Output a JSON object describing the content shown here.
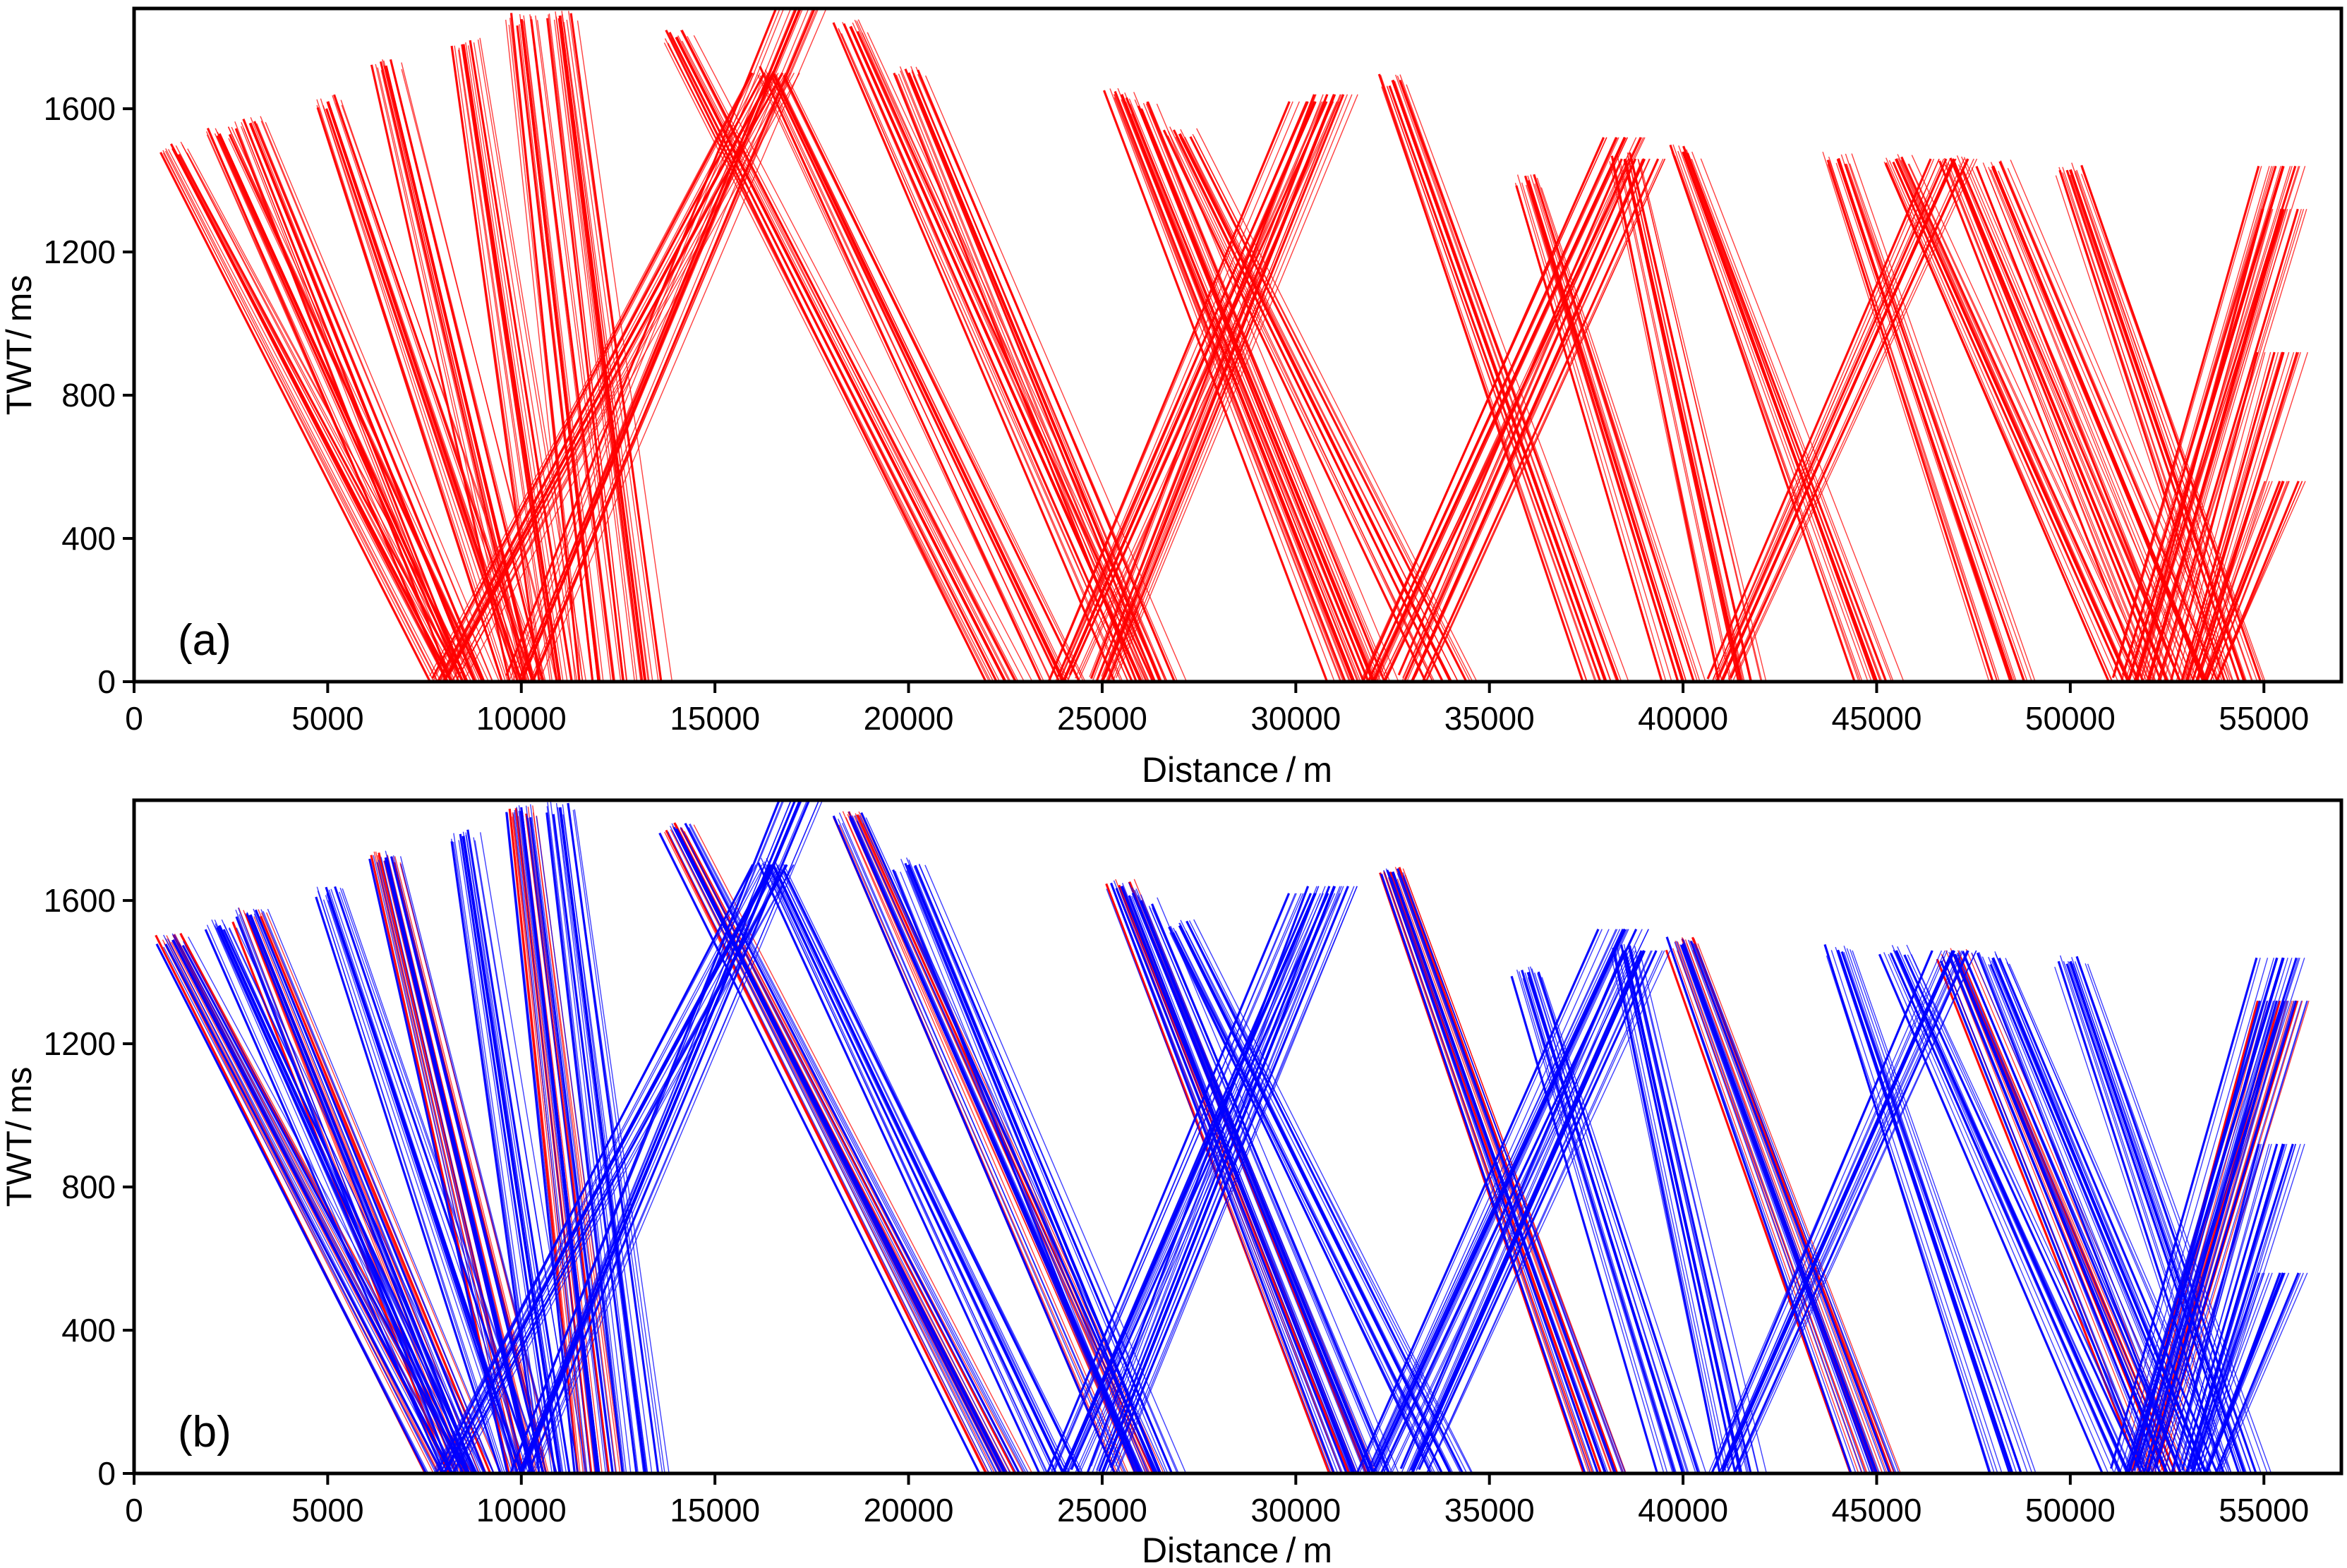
{
  "colors": {
    "observed": "#ff0000",
    "predicted": "#0000ff",
    "axis": "#000000"
  },
  "chart_data": [
    {
      "type": "line",
      "panel_label": "(a)",
      "xlabel": "Distance / m",
      "ylabel": "TWT/ ms",
      "xlim": [
        0,
        57000
      ],
      "ylim": [
        0,
        1880
      ],
      "xticks": [
        "0",
        "5000",
        "10000",
        "15000",
        "20000",
        "25000",
        "30000",
        "35000",
        "40000",
        "45000",
        "50000",
        "55000"
      ],
      "yticks": [
        "0",
        "400",
        "800",
        "1200",
        "1600"
      ],
      "series": [
        {
          "color": "#ff0000",
          "fans": [
            {
              "x": [
                1000,
                8200
              ],
              "y": [
                1490,
                0
              ]
            },
            {
              "x": [
                2200,
                8600
              ],
              "y": [
                1530,
                0
              ]
            },
            {
              "x": [
                3000,
                8800
              ],
              "y": [
                1560,
                0
              ]
            },
            {
              "x": [
                5000,
                10000
              ],
              "y": [
                1620,
                0
              ]
            },
            {
              "x": [
                6500,
                10300
              ],
              "y": [
                1720,
                0
              ]
            },
            {
              "x": [
                8500,
                11000
              ],
              "y": [
                1780,
                0
              ]
            },
            {
              "x": [
                10000,
                12000
              ],
              "y": [
                1850,
                0
              ]
            },
            {
              "x": [
                11000,
                13200
              ],
              "y": [
                1860,
                0
              ]
            },
            {
              "x": [
                8000,
                16500
              ],
              "y": [
                0,
                1700
              ]
            },
            {
              "x": [
                10000,
                17200
              ],
              "y": [
                0,
                1880
              ]
            },
            {
              "x": [
                14000,
                22500
              ],
              "y": [
                1800,
                0
              ]
            },
            {
              "x": [
                16500,
                24000
              ],
              "y": [
                1700,
                0
              ]
            },
            {
              "x": [
                18500,
                26000
              ],
              "y": [
                1830,
                0
              ]
            },
            {
              "x": [
                20000,
                26500
              ],
              "y": [
                1700,
                0
              ]
            },
            {
              "x": [
                24000,
                30500
              ],
              "y": [
                0,
                1620
              ]
            },
            {
              "x": [
                25000,
                31000
              ],
              "y": [
                0,
                1640
              ]
            },
            {
              "x": [
                25500,
                31500
              ],
              "y": [
                1640,
                0
              ]
            },
            {
              "x": [
                26000,
                32000
              ],
              "y": [
                1600,
                0
              ]
            },
            {
              "x": [
                27000,
                34000
              ],
              "y": [
                1530,
                0
              ]
            },
            {
              "x": [
                32500,
                38000
              ],
              "y": [
                1680,
                0
              ]
            },
            {
              "x": [
                32000,
                38500
              ],
              "y": [
                0,
                1520
              ]
            },
            {
              "x": [
                33000,
                39000
              ],
              "y": [
                0,
                1460
              ]
            },
            {
              "x": [
                36000,
                40000
              ],
              "y": [
                1400,
                0
              ]
            },
            {
              "x": [
                38500,
                41500
              ],
              "y": [
                1460,
                0
              ]
            },
            {
              "x": [
                40000,
                45000
              ],
              "y": [
                1480,
                0
              ]
            },
            {
              "x": [
                41000,
                47000
              ],
              "y": [
                0,
                1460
              ]
            },
            {
              "x": [
                44000,
                48500
              ],
              "y": [
                1460,
                0
              ]
            },
            {
              "x": [
                45500,
                51500
              ],
              "y": [
                1460,
                0
              ]
            },
            {
              "x": [
                47000,
                52500
              ],
              "y": [
                1450,
                0
              ]
            },
            {
              "x": [
                48000,
                53500
              ],
              "y": [
                1440,
                0
              ]
            },
            {
              "x": [
                50000,
                54500
              ],
              "y": [
                1430,
                0
              ]
            },
            {
              "x": [
                51500,
                55500
              ],
              "y": [
                0,
                1440
              ]
            },
            {
              "x": [
                52000,
                55500
              ],
              "y": [
                0,
                1320
              ]
            },
            {
              "x": [
                53000,
                55500
              ],
              "y": [
                0,
                920
              ]
            },
            {
              "x": [
                53500,
                55500
              ],
              "y": [
                0,
                560
              ]
            }
          ]
        }
      ]
    },
    {
      "type": "line",
      "panel_label": "(b)",
      "xlabel": "Distance / m",
      "ylabel": "TWT/ ms",
      "xlim": [
        0,
        57000
      ],
      "ylim": [
        0,
        1880
      ],
      "xticks": [
        "0",
        "5000",
        "10000",
        "15000",
        "20000",
        "25000",
        "30000",
        "35000",
        "40000",
        "45000",
        "50000",
        "55000"
      ],
      "yticks": [
        "0",
        "400",
        "800",
        "1200",
        "1600"
      ],
      "series": [
        {
          "color": "#ff0000",
          "fans": [
            {
              "x": [
                1000,
                8200
              ],
              "y": [
                1490,
                0
              ]
            },
            {
              "x": [
                3000,
                8800
              ],
              "y": [
                1560,
                0
              ]
            },
            {
              "x": [
                6500,
                10300
              ],
              "y": [
                1720,
                0
              ]
            },
            {
              "x": [
                10000,
                12000
              ],
              "y": [
                1850,
                0
              ]
            },
            {
              "x": [
                14000,
                22500
              ],
              "y": [
                1800,
                0
              ]
            },
            {
              "x": [
                18500,
                26000
              ],
              "y": [
                1830,
                0
              ]
            },
            {
              "x": [
                25500,
                31500
              ],
              "y": [
                1640,
                0
              ]
            },
            {
              "x": [
                32500,
                38000
              ],
              "y": [
                1680,
                0
              ]
            },
            {
              "x": [
                40000,
                45000
              ],
              "y": [
                1480,
                0
              ]
            },
            {
              "x": [
                47000,
                52500
              ],
              "y": [
                1450,
                0
              ]
            },
            {
              "x": [
                52000,
                55500
              ],
              "y": [
                0,
                1320
              ]
            }
          ]
        },
        {
          "color": "#0000ff",
          "fans": [
            {
              "x": [
                1000,
                8200
              ],
              "y": [
                1490,
                0
              ]
            },
            {
              "x": [
                2200,
                8600
              ],
              "y": [
                1530,
                0
              ]
            },
            {
              "x": [
                3000,
                8800
              ],
              "y": [
                1560,
                0
              ]
            },
            {
              "x": [
                5000,
                10000
              ],
              "y": [
                1620,
                0
              ]
            },
            {
              "x": [
                6500,
                10300
              ],
              "y": [
                1720,
                0
              ]
            },
            {
              "x": [
                8500,
                11000
              ],
              "y": [
                1780,
                0
              ]
            },
            {
              "x": [
                10000,
                12000
              ],
              "y": [
                1850,
                0
              ]
            },
            {
              "x": [
                11000,
                13200
              ],
              "y": [
                1860,
                0
              ]
            },
            {
              "x": [
                8000,
                16500
              ],
              "y": [
                0,
                1700
              ]
            },
            {
              "x": [
                10000,
                17200
              ],
              "y": [
                0,
                1880
              ]
            },
            {
              "x": [
                14000,
                22500
              ],
              "y": [
                1800,
                0
              ]
            },
            {
              "x": [
                16500,
                24000
              ],
              "y": [
                1700,
                0
              ]
            },
            {
              "x": [
                18500,
                26000
              ],
              "y": [
                1830,
                0
              ]
            },
            {
              "x": [
                20000,
                26500
              ],
              "y": [
                1700,
                0
              ]
            },
            {
              "x": [
                24000,
                30500
              ],
              "y": [
                0,
                1620
              ]
            },
            {
              "x": [
                25000,
                31000
              ],
              "y": [
                0,
                1640
              ]
            },
            {
              "x": [
                25500,
                31500
              ],
              "y": [
                1640,
                0
              ]
            },
            {
              "x": [
                26000,
                32000
              ],
              "y": [
                1600,
                0
              ]
            },
            {
              "x": [
                27000,
                34000
              ],
              "y": [
                1530,
                0
              ]
            },
            {
              "x": [
                32500,
                38000
              ],
              "y": [
                1680,
                0
              ]
            },
            {
              "x": [
                32000,
                38500
              ],
              "y": [
                0,
                1520
              ]
            },
            {
              "x": [
                33000,
                39000
              ],
              "y": [
                0,
                1460
              ]
            },
            {
              "x": [
                36000,
                40000
              ],
              "y": [
                1400,
                0
              ]
            },
            {
              "x": [
                38500,
                41500
              ],
              "y": [
                1460,
                0
              ]
            },
            {
              "x": [
                40000,
                45000
              ],
              "y": [
                1480,
                0
              ]
            },
            {
              "x": [
                41000,
                47000
              ],
              "y": [
                0,
                1460
              ]
            },
            {
              "x": [
                44000,
                48500
              ],
              "y": [
                1460,
                0
              ]
            },
            {
              "x": [
                45500,
                51500
              ],
              "y": [
                1460,
                0
              ]
            },
            {
              "x": [
                47000,
                52500
              ],
              "y": [
                1450,
                0
              ]
            },
            {
              "x": [
                48000,
                53500
              ],
              "y": [
                1440,
                0
              ]
            },
            {
              "x": [
                50000,
                54500
              ],
              "y": [
                1430,
                0
              ]
            },
            {
              "x": [
                51500,
                55500
              ],
              "y": [
                0,
                1440
              ]
            },
            {
              "x": [
                52000,
                55500
              ],
              "y": [
                0,
                1320
              ]
            },
            {
              "x": [
                53000,
                55500
              ],
              "y": [
                0,
                920
              ]
            },
            {
              "x": [
                53500,
                55500
              ],
              "y": [
                0,
                560
              ]
            }
          ]
        }
      ]
    }
  ]
}
